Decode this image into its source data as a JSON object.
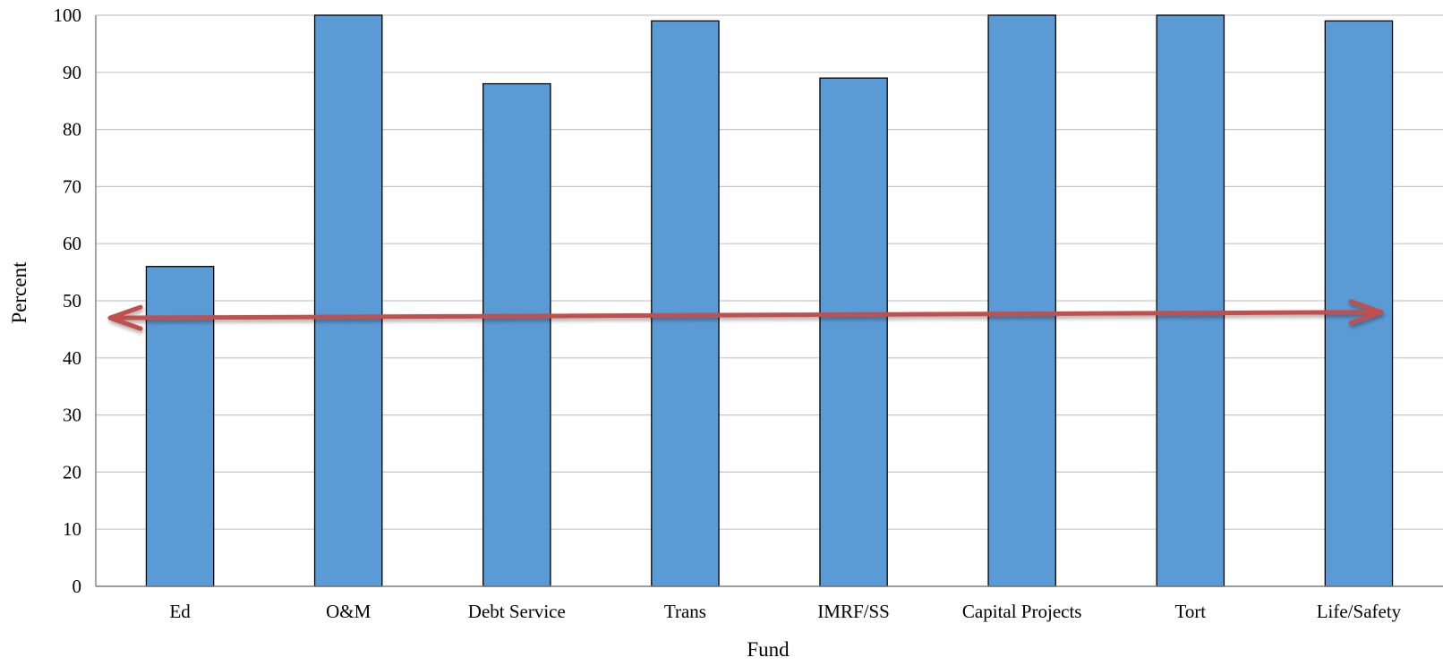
{
  "chart_data": {
    "type": "bar",
    "title": "",
    "xlabel": "Fund",
    "ylabel": "Percent",
    "categories": [
      "Ed",
      "O&M",
      "Debt Service",
      "Trans",
      "IMRF/SS",
      "Capital Projects",
      "Tort",
      "Life/Safety"
    ],
    "values": [
      56,
      100,
      88,
      99,
      89,
      100,
      100,
      99
    ],
    "ylim": [
      0,
      100
    ],
    "yticks": [
      0,
      10,
      20,
      30,
      40,
      50,
      60,
      70,
      80,
      90,
      100
    ],
    "grid": true,
    "legend": "none",
    "bar_color": "#5b9bd5",
    "annotation": {
      "type": "double-headed-arrow",
      "y_start": 47,
      "y_end": 48,
      "color": "#c0504d"
    }
  }
}
